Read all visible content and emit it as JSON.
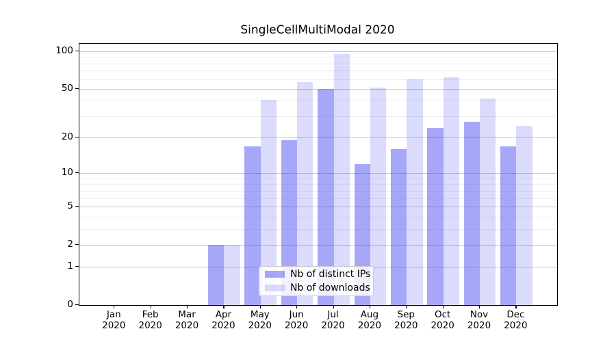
{
  "title": "SingleCellMultiModal 2020",
  "legend": {
    "items": [
      {
        "label": "Nb of distinct IPs",
        "swatch": "rgba(60,60,240,0.45)"
      },
      {
        "label": "Nb of downloads",
        "swatch": "rgba(60,60,240,0.185)"
      }
    ]
  },
  "y_axis": {
    "tick_labels": [
      "100",
      "50",
      "20",
      "10",
      "5",
      "2",
      "1",
      "0"
    ]
  },
  "x_axis": {
    "year": "2020",
    "months": [
      "Jan",
      "Feb",
      "Mar",
      "Apr",
      "May",
      "Jun",
      "Jul",
      "Aug",
      "Sep",
      "Oct",
      "Nov",
      "Dec"
    ]
  },
  "colors": {
    "bar_dark": "rgba(60,60,240,0.45)",
    "bar_light": "rgba(60,60,240,0.185)",
    "major_grid": "#c9c9c9",
    "minor_grid": "#efefef",
    "axis": "#000000"
  },
  "chart_data": {
    "type": "bar",
    "title": "SingleCellMultiModal 2020",
    "categories": [
      "Jan 2020",
      "Feb 2020",
      "Mar 2020",
      "Apr 2020",
      "May 2020",
      "Jun 2020",
      "Jul 2020",
      "Aug 2020",
      "Sep 2020",
      "Oct 2020",
      "Nov 2020",
      "Dec 2020"
    ],
    "series": [
      {
        "name": "Nb of distinct IPs",
        "values": [
          0,
          0,
          0,
          2,
          17,
          19,
          50,
          12,
          16,
          24,
          27,
          17
        ]
      },
      {
        "name": "Nb of downloads",
        "values": [
          0,
          0,
          0,
          2,
          41,
          57,
          95,
          51,
          60,
          62,
          42,
          25
        ]
      }
    ],
    "yscale": "log10(1+x)",
    "yticks": [
      0,
      1,
      2,
      5,
      10,
      20,
      50,
      100
    ],
    "minor_yticks": [
      3,
      4,
      6,
      7,
      8,
      9,
      30,
      40,
      60,
      70,
      80,
      90
    ],
    "ylim": [
      0,
      115
    ],
    "xlabel": "",
    "ylabel": "",
    "grid": true,
    "legend_position": "lower center"
  }
}
